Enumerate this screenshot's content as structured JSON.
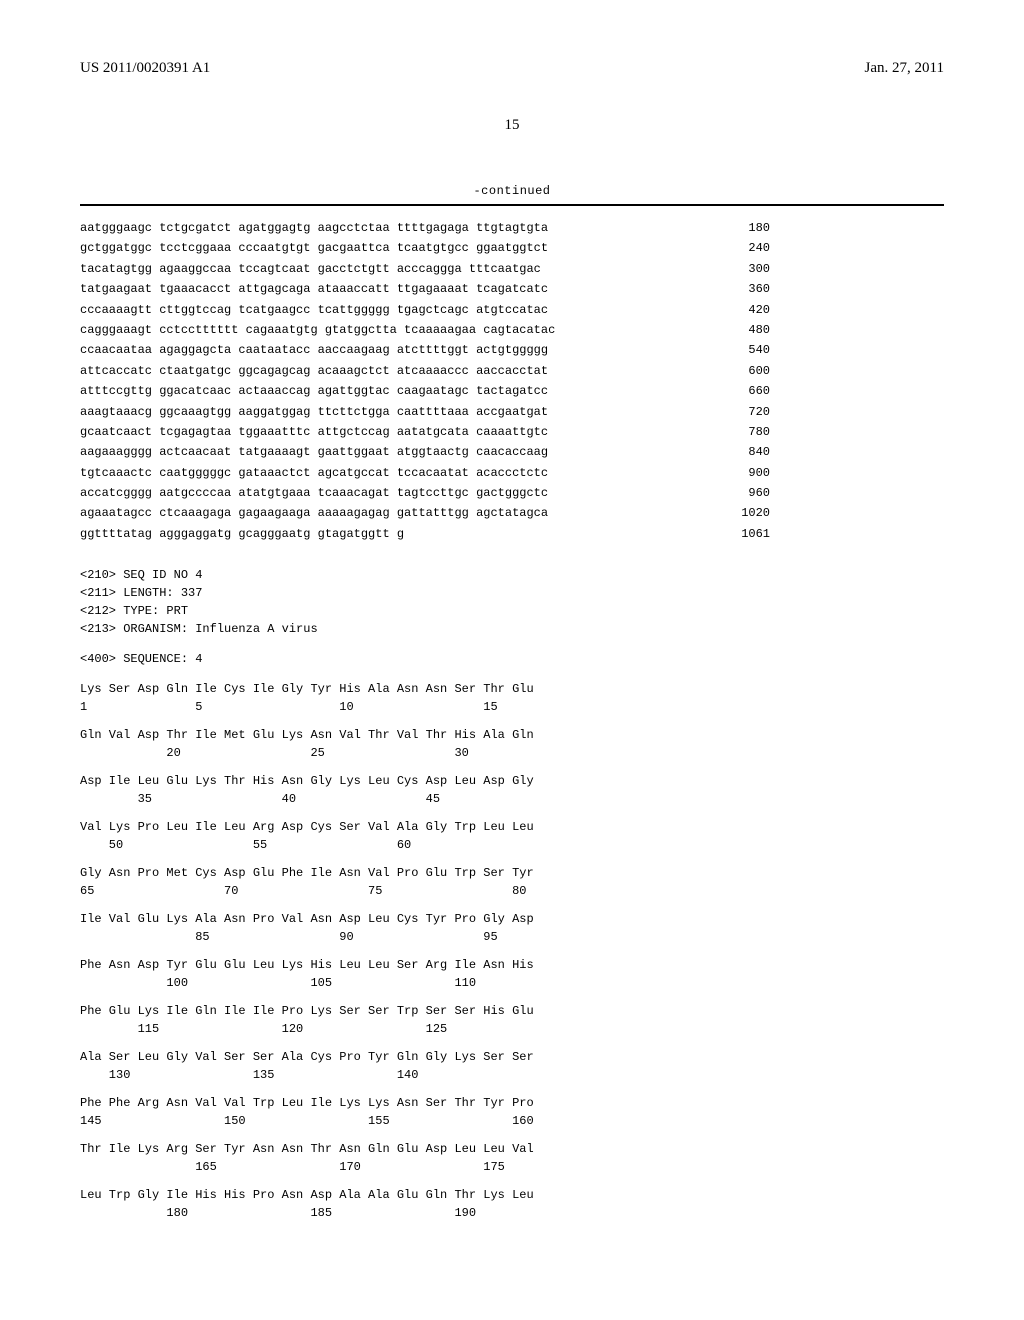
{
  "header": {
    "doc_id": "US 2011/0020391 A1",
    "date": "Jan. 27, 2011",
    "page_number": "15"
  },
  "continued_label": "-continued",
  "nucleotide_sequence": {
    "lines": [
      {
        "seq": "aatgggaagc tctgcgatct agatggagtg aagcctctaa ttttgagaga ttgtagtgta",
        "pos": "180"
      },
      {
        "seq": "gctggatggc tcctcggaaa cccaatgtgt gacgaattca tcaatgtgcc ggaatggtct",
        "pos": "240"
      },
      {
        "seq": "tacatagtgg agaaggccaa tccagtcaat gacctctgtt acccaggga tttcaatgac",
        "pos": "300"
      },
      {
        "seq": "tatgaagaat tgaaacacct attgagcaga ataaaccatt ttgagaaaat tcagatcatc",
        "pos": "360"
      },
      {
        "seq": "cccaaaagtt cttggtccag tcatgaagcc tcattggggg tgagctcagc atgtccatac",
        "pos": "420"
      },
      {
        "seq": "cagggaaagt cctcctttttt cagaaatgtg gtatggctta tcaaaaagaa cagtacatac",
        "pos": "480"
      },
      {
        "seq": "ccaacaataa agaggagcta caataatacc aaccaagaag atcttttggt actgtggggg",
        "pos": "540"
      },
      {
        "seq": "attcaccatc ctaatgatgc ggcagagcag acaaagctct atcaaaaccc aaccacctat",
        "pos": "600"
      },
      {
        "seq": "atttccgttg ggacatcaac actaaaccag agattggtac caagaatagc tactagatcc",
        "pos": "660"
      },
      {
        "seq": "aaagtaaacg ggcaaagtgg aaggatggag ttcttctgga caattttaaa accgaatgat",
        "pos": "720"
      },
      {
        "seq": "gcaatcaact tcgagagtaa tggaaatttc attgctccag aatatgcata caaaattgtc",
        "pos": "780"
      },
      {
        "seq": "aagaaagggg actcaacaat tatgaaaagt gaattggaat atggtaactg caacaccaag",
        "pos": "840"
      },
      {
        "seq": "tgtcaaactc caatgggggc gataaactct agcatgccat tccacaatat acaccctctc",
        "pos": "900"
      },
      {
        "seq": "accatcgggg aatgccccaa atatgtgaaa tcaaacagat tagtccttgc gactgggctc",
        "pos": "960"
      },
      {
        "seq": "agaaatagcc ctcaaagaga gagaagaaga aaaaagagag gattatttgg agctatagca",
        "pos": "1020"
      },
      {
        "seq": "ggttttatag agggaggatg gcagggaatg gtagatggtt g",
        "pos": "1061"
      }
    ]
  },
  "meta": {
    "seq_id": "<210> SEQ ID NO 4",
    "length": "<211> LENGTH: 337",
    "type": "<212> TYPE: PRT",
    "organism": "<213> ORGANISM: Influenza A virus"
  },
  "sequence_label": "<400> SEQUENCE: 4",
  "protein_sequence": {
    "rows": [
      {
        "aa": "Lys Ser Asp Gln Ile Cys Ile Gly Tyr His Ala Asn Asn Ser Thr Glu",
        "num": "1               5                   10                  15"
      },
      {
        "aa": "Gln Val Asp Thr Ile Met Glu Lys Asn Val Thr Val Thr His Ala Gln",
        "num": "            20                  25                  30"
      },
      {
        "aa": "Asp Ile Leu Glu Lys Thr His Asn Gly Lys Leu Cys Asp Leu Asp Gly",
        "num": "        35                  40                  45"
      },
      {
        "aa": "Val Lys Pro Leu Ile Leu Arg Asp Cys Ser Val Ala Gly Trp Leu Leu",
        "num": "    50                  55                  60"
      },
      {
        "aa": "Gly Asn Pro Met Cys Asp Glu Phe Ile Asn Val Pro Glu Trp Ser Tyr",
        "num": "65                  70                  75                  80"
      },
      {
        "aa": "Ile Val Glu Lys Ala Asn Pro Val Asn Asp Leu Cys Tyr Pro Gly Asp",
        "num": "                85                  90                  95"
      },
      {
        "aa": "Phe Asn Asp Tyr Glu Glu Leu Lys His Leu Leu Ser Arg Ile Asn His",
        "num": "            100                 105                 110"
      },
      {
        "aa": "Phe Glu Lys Ile Gln Ile Ile Pro Lys Ser Ser Trp Ser Ser His Glu",
        "num": "        115                 120                 125"
      },
      {
        "aa": "Ala Ser Leu Gly Val Ser Ser Ala Cys Pro Tyr Gln Gly Lys Ser Ser",
        "num": "    130                 135                 140"
      },
      {
        "aa": "Phe Phe Arg Asn Val Val Trp Leu Ile Lys Lys Asn Ser Thr Tyr Pro",
        "num": "145                 150                 155                 160"
      },
      {
        "aa": "Thr Ile Lys Arg Ser Tyr Asn Asn Thr Asn Gln Glu Asp Leu Leu Val",
        "num": "                165                 170                 175"
      },
      {
        "aa": "Leu Trp Gly Ile His His Pro Asn Asp Ala Ala Glu Gln Thr Lys Leu",
        "num": "            180                 185                 190"
      }
    ]
  }
}
